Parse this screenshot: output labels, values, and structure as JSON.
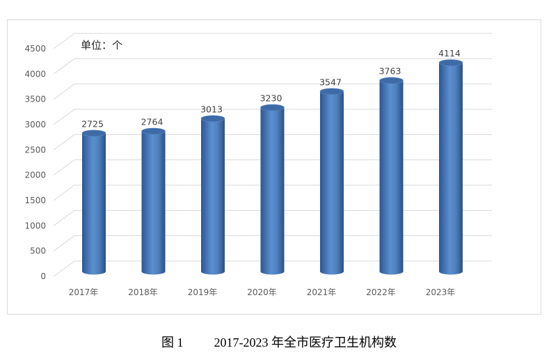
{
  "chart_data": {
    "type": "bar",
    "style": "3d-cylinder",
    "categories": [
      "2017年",
      "2018年",
      "2019年",
      "2020年",
      "2021年",
      "2022年",
      "2023年"
    ],
    "values": [
      2725,
      2764,
      3013,
      3230,
      3547,
      3763,
      4114
    ],
    "ylim": [
      0,
      4500
    ],
    "yticks": [
      0,
      500,
      1000,
      1500,
      2000,
      2500,
      3000,
      3500,
      4000,
      4500
    ],
    "ytick_labels": [
      "0",
      "500",
      "1000",
      "1500",
      "2000",
      "2500",
      "3000",
      "3500",
      "4000",
      "4500"
    ],
    "data_labels": [
      "2725",
      "2764",
      "3013",
      "3230",
      "3547",
      "3763",
      "4114"
    ],
    "unit_annotation": "单位：个",
    "grid": true,
    "bar_color": "#4f81bd",
    "bar_dark": "#2d5691",
    "bar_top": "#3e6aa5"
  },
  "caption": {
    "figure": "图 1",
    "title": "2017-2023 年全市医疗卫生机构数"
  }
}
